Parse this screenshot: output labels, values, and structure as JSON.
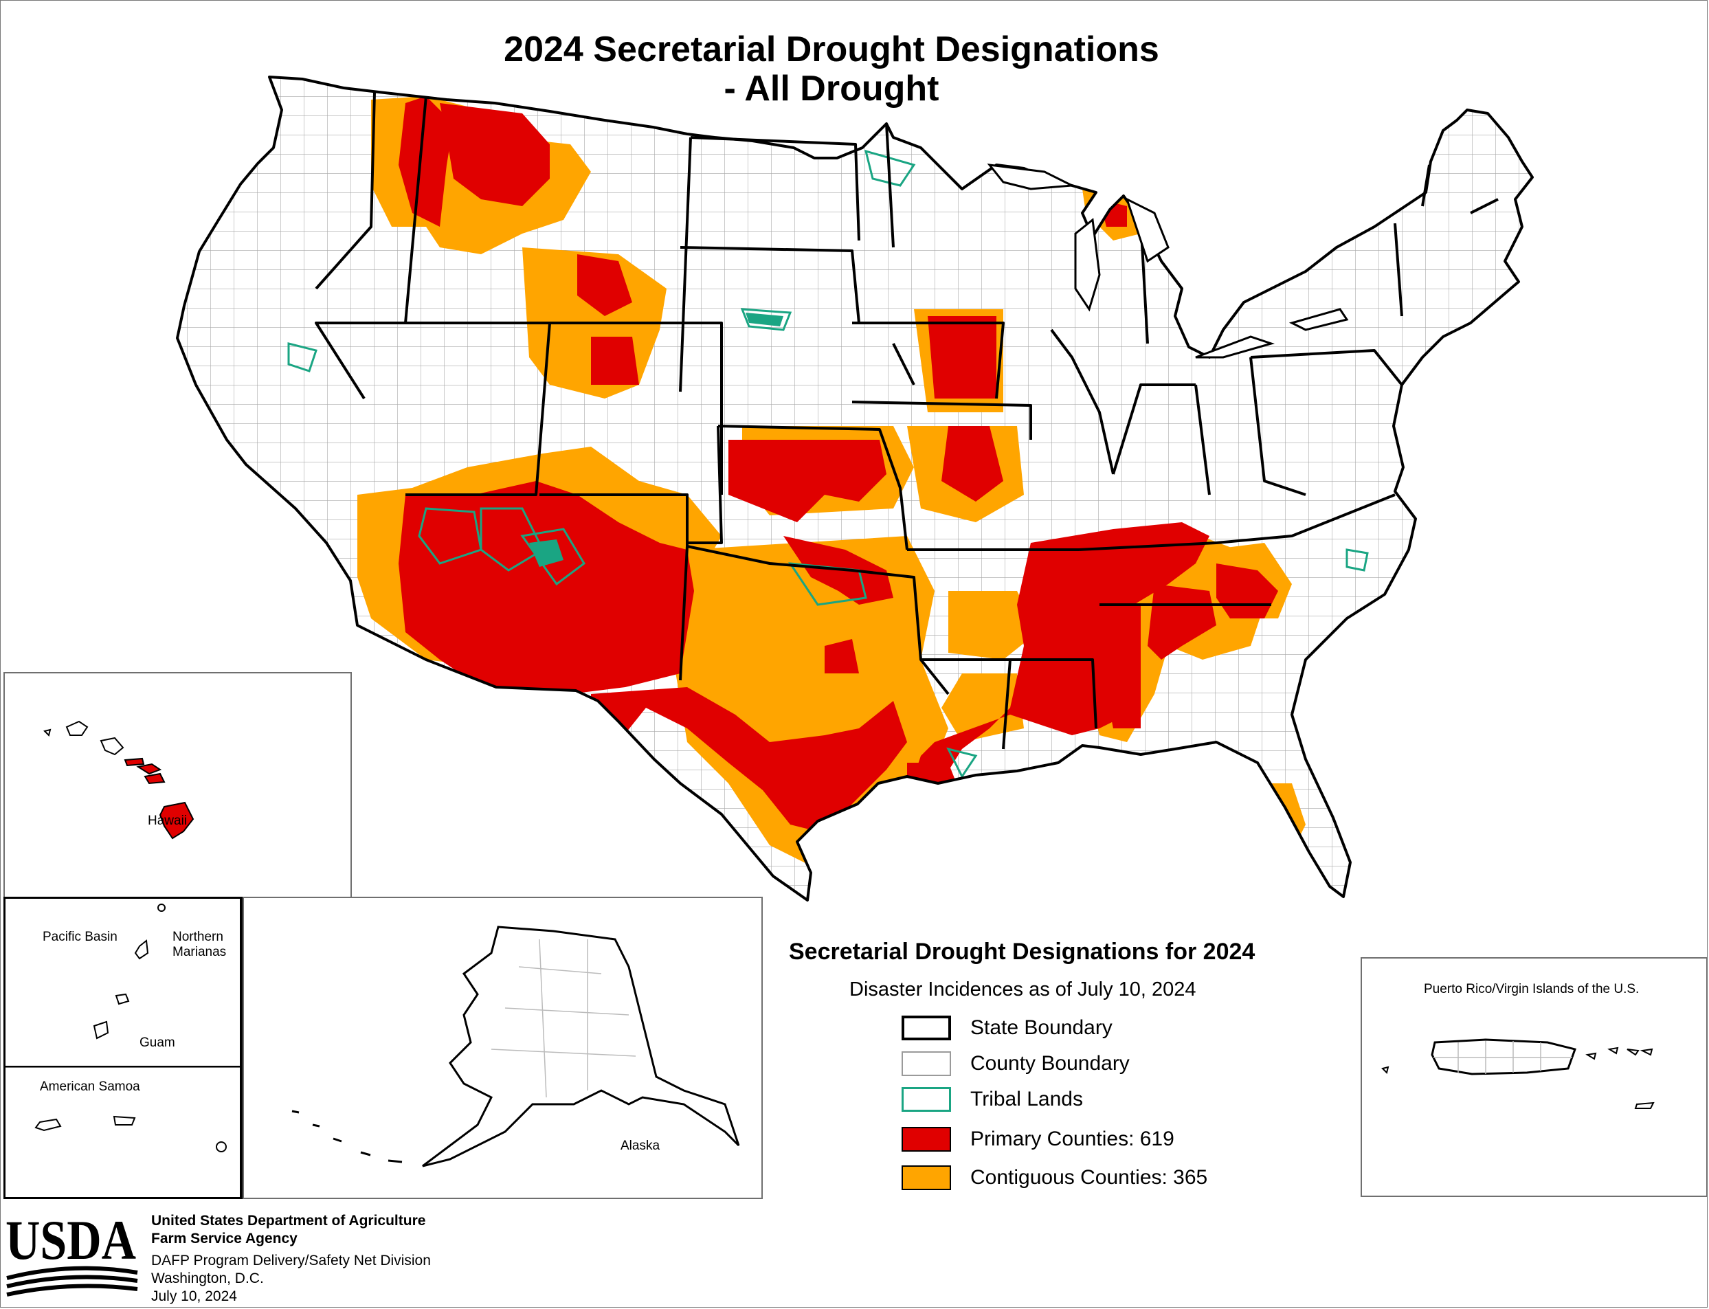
{
  "title": {
    "line1": "2024 Secretarial Drought Designations",
    "line2": "- All Drought"
  },
  "legend": {
    "heading": "Secretarial Drought Designations for 2024",
    "subheading": "Disaster Incidences as of July 10, 2024",
    "items": [
      {
        "label": "State Boundary",
        "kind": "state",
        "color": "#000000"
      },
      {
        "label": "County Boundary",
        "kind": "county",
        "color": "#9a9a9a"
      },
      {
        "label": "Tribal  Lands",
        "kind": "tribal",
        "color": "#1aa583"
      },
      {
        "label": "Primary Counties: 619",
        "kind": "primary",
        "color": "#e00000"
      },
      {
        "label": "Contiguous Counties: 365",
        "kind": "contiguous",
        "color": "#ffa500"
      }
    ]
  },
  "insets": {
    "hawaii": "Hawaii",
    "pacific_basin": "Pacific Basin",
    "northern_marianas": "Northern\nMarianas",
    "guam": "Guam",
    "american_samoa": "American Samoa",
    "alaska": "Alaska",
    "puerto_rico": "Puerto Rico/Virgin Islands of the U.S."
  },
  "footer": {
    "logo_text": "USDA",
    "agency_line1": "United States Department of Agriculture",
    "agency_line2": "Farm Service Agency",
    "division": "DAFP Program Delivery/Safety Net Division",
    "city": "Washington, D.C.",
    "date": "July 10, 2024"
  },
  "colors": {
    "primary": "#e00000",
    "contiguous": "#ffa500",
    "tribal": "#1aa583",
    "state_boundary": "#000000",
    "county_boundary": "#9a9a9a"
  }
}
